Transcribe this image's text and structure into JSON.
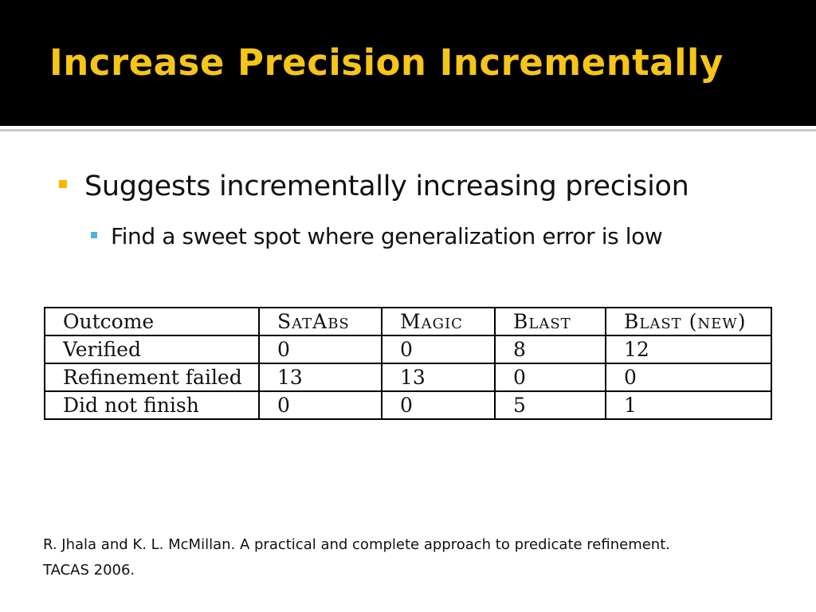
{
  "slide": {
    "title": "Increase Precision Incrementally",
    "bullets": [
      {
        "level": 1,
        "text": "Suggests incrementally increasing precision"
      },
      {
        "level": 2,
        "text": "Find a sweet spot where generalization error is low"
      }
    ],
    "table": {
      "header": [
        "Outcome",
        "SatAbs",
        "Magic",
        "Blast",
        "Blast (new)"
      ],
      "rows": [
        [
          "Verified",
          "0",
          "0",
          "8",
          "12"
        ],
        [
          "Refinement failed",
          "13",
          "13",
          "0",
          "0"
        ],
        [
          "Did not finish",
          "0",
          "0",
          "5",
          "1"
        ]
      ]
    },
    "citation": {
      "line1": "R. Jhala and K. L. McMillan. A practical and complete approach to predicate refinement.",
      "line2": "TACAS 2006."
    }
  },
  "colors": {
    "title_bar": "#000000",
    "title_text": "#f5c518",
    "bullet1_marker": "#f5b700",
    "bullet2_marker": "#4fb3d9"
  }
}
